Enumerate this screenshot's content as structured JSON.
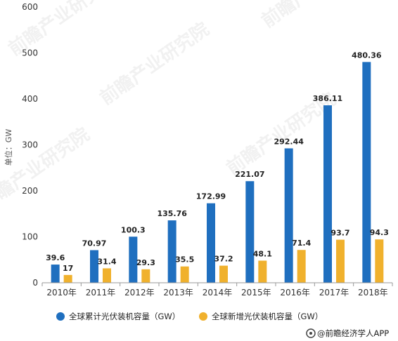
{
  "chart_data": {
    "type": "bar",
    "categories": [
      "2010年",
      "2011年",
      "2012年",
      "2013年",
      "2014年",
      "2015年",
      "2016年",
      "2017年",
      "2018年"
    ],
    "series": [
      {
        "name": "全球累计光伏装机容量（GW）",
        "color": "#1f6fbf",
        "values": [
          39.6,
          70.97,
          100.3,
          135.76,
          172.99,
          221.07,
          292.44,
          386.11,
          480.36
        ],
        "labels": [
          "39.6",
          "70.97",
          "100.3",
          "135.76",
          "172.99",
          "221.07",
          "292.44",
          "386.11",
          "480.36"
        ]
      },
      {
        "name": "全球新增光伏装机容量（GW）",
        "color": "#f0b12d",
        "values": [
          17,
          31.4,
          29.3,
          35.5,
          37.2,
          48.1,
          71.4,
          93.7,
          94.3
        ],
        "labels": [
          "17",
          "31.4",
          "29.3",
          "35.5",
          "37.2",
          "48.1",
          "71.4",
          "93.7",
          "94.3"
        ]
      }
    ],
    "ylabel": "单位：GW",
    "ylim": [
      0,
      600
    ],
    "yticks": [
      "0",
      "100",
      "200",
      "300",
      "400",
      "500",
      "600"
    ],
    "grid": false,
    "legend_position": "bottom"
  },
  "source": "@前瞻经济学人APP",
  "watermark": "前瞻产业研究院"
}
